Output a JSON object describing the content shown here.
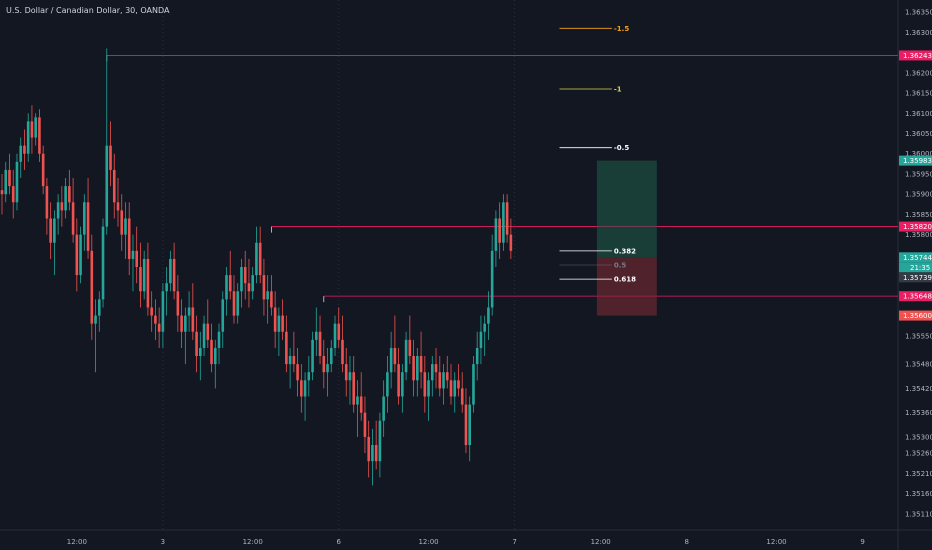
{
  "symbol_title": "U.S. Dollar / Canadian Dollar, 30, OANDA",
  "colors": {
    "bg": "#131722",
    "up": "#26a69a",
    "down": "#ef5350",
    "grid": "#1e222d",
    "text": "#b2b5be",
    "hline": "#e91e63",
    "profit": "#0f3d34",
    "loss": "#4a1f25"
  },
  "chart_data": {
    "type": "candlestick",
    "instrument": "U.S. Dollar / Canadian Dollar",
    "interval": "30",
    "source": "OANDA",
    "ylim": [
      1.3507,
      1.3638
    ],
    "price_ticks": [
      1.3635,
      1.363,
      1.362,
      1.3615,
      1.361,
      1.3605,
      1.36,
      1.3595,
      1.359,
      1.3585,
      1.358,
      1.3575,
      1.357,
      1.3565,
      1.356,
      1.3555,
      1.3548,
      1.3542,
      1.3536,
      1.353,
      1.3526,
      1.3521,
      1.3516,
      1.3511
    ],
    "price_tick_labels": [
      "1.36350",
      "1.36300",
      "1.36200",
      "1.36150",
      "1.36100",
      "1.36050",
      "1.36000",
      "1.35950",
      "1.35900",
      "1.35850",
      "1.35800",
      "1.35750",
      "1.35700",
      "1.35650",
      "1.35600",
      "1.35550",
      "1.35480",
      "1.35420",
      "1.35360",
      "1.35300",
      "1.35260",
      "1.35210",
      "1.35160",
      "1.35110"
    ],
    "time_ticks": [
      {
        "label": "12:00",
        "bar": 20
      },
      {
        "label": "3",
        "bar": 43
      },
      {
        "label": "12:00",
        "bar": 67
      },
      {
        "label": "6",
        "bar": 90
      },
      {
        "label": "12:00",
        "bar": 114
      },
      {
        "label": "7",
        "bar": 137
      },
      {
        "label": "12:00",
        "bar": 160
      },
      {
        "label": "8",
        "bar": 183
      },
      {
        "label": "12:00",
        "bar": 207
      },
      {
        "label": "9",
        "bar": 230
      }
    ],
    "session_separators": [
      43,
      90,
      137
    ],
    "bar_count_span": 240,
    "candles": [
      [
        1.3591,
        1.3595,
        1.3585,
        1.359
      ],
      [
        1.359,
        1.3598,
        1.3588,
        1.3596
      ],
      [
        1.3596,
        1.36,
        1.359,
        1.3592
      ],
      [
        1.3592,
        1.3596,
        1.3584,
        1.3588
      ],
      [
        1.3588,
        1.36,
        1.3586,
        1.3598
      ],
      [
        1.3598,
        1.3604,
        1.3594,
        1.3602
      ],
      [
        1.3602,
        1.3606,
        1.3596,
        1.36
      ],
      [
        1.36,
        1.361,
        1.3598,
        1.3608
      ],
      [
        1.3608,
        1.3612,
        1.36,
        1.3604
      ],
      [
        1.3604,
        1.361,
        1.3602,
        1.3609
      ],
      [
        1.3609,
        1.3611,
        1.3598,
        1.36
      ],
      [
        1.36,
        1.3602,
        1.359,
        1.3592
      ],
      [
        1.3592,
        1.3594,
        1.358,
        1.3584
      ],
      [
        1.3584,
        1.3588,
        1.3574,
        1.3578
      ],
      [
        1.3578,
        1.3586,
        1.357,
        1.3584
      ],
      [
        1.3584,
        1.359,
        1.358,
        1.3588
      ],
      [
        1.3588,
        1.3592,
        1.3582,
        1.3586
      ],
      [
        1.3586,
        1.3594,
        1.3584,
        1.3592
      ],
      [
        1.3592,
        1.3596,
        1.3586,
        1.3588
      ],
      [
        1.3588,
        1.3594,
        1.3578,
        1.358
      ],
      [
        1.358,
        1.3584,
        1.3566,
        1.357
      ],
      [
        1.357,
        1.3582,
        1.3568,
        1.358
      ],
      [
        1.358,
        1.359,
        1.3576,
        1.3588
      ],
      [
        1.3588,
        1.3594,
        1.3574,
        1.3576
      ],
      [
        1.3576,
        1.358,
        1.3554,
        1.3558
      ],
      [
        1.3558,
        1.3564,
        1.3546,
        1.356
      ],
      [
        1.356,
        1.3566,
        1.3556,
        1.3564
      ],
      [
        1.3564,
        1.3584,
        1.3562,
        1.3582
      ],
      [
        1.3582,
        1.3626,
        1.358,
        1.3602
      ],
      [
        1.3602,
        1.3608,
        1.3592,
        1.3596
      ],
      [
        1.3596,
        1.36,
        1.3584,
        1.3588
      ],
      [
        1.3588,
        1.3594,
        1.3582,
        1.3586
      ],
      [
        1.3586,
        1.359,
        1.3576,
        1.358
      ],
      [
        1.358,
        1.3588,
        1.3574,
        1.3584
      ],
      [
        1.3584,
        1.3588,
        1.357,
        1.3574
      ],
      [
        1.3574,
        1.358,
        1.3566,
        1.3576
      ],
      [
        1.3576,
        1.3582,
        1.3568,
        1.3572
      ],
      [
        1.3572,
        1.3578,
        1.3562,
        1.3566
      ],
      [
        1.3566,
        1.3576,
        1.3564,
        1.3574
      ],
      [
        1.3574,
        1.3578,
        1.356,
        1.3562
      ],
      [
        1.3562,
        1.3566,
        1.3556,
        1.356
      ],
      [
        1.356,
        1.3564,
        1.3554,
        1.3558
      ],
      [
        1.3558,
        1.3562,
        1.3552,
        1.3556
      ],
      [
        1.3556,
        1.3568,
        1.3552,
        1.3566
      ],
      [
        1.3566,
        1.3572,
        1.356,
        1.3568
      ],
      [
        1.3568,
        1.3576,
        1.3566,
        1.3574
      ],
      [
        1.3574,
        1.3578,
        1.3564,
        1.3566
      ],
      [
        1.3566,
        1.357,
        1.3556,
        1.356
      ],
      [
        1.356,
        1.3564,
        1.3552,
        1.3556
      ],
      [
        1.3556,
        1.3562,
        1.3548,
        1.356
      ],
      [
        1.356,
        1.3566,
        1.3556,
        1.3562
      ],
      [
        1.3562,
        1.3568,
        1.3554,
        1.3556
      ],
      [
        1.3556,
        1.356,
        1.3546,
        1.355
      ],
      [
        1.355,
        1.3556,
        1.3544,
        1.3552
      ],
      [
        1.3552,
        1.356,
        1.355,
        1.3558
      ],
      [
        1.3558,
        1.3564,
        1.3552,
        1.3554
      ],
      [
        1.3554,
        1.3558,
        1.3546,
        1.3548
      ],
      [
        1.3548,
        1.3554,
        1.3542,
        1.3552
      ],
      [
        1.3552,
        1.3558,
        1.3548,
        1.3556
      ],
      [
        1.3556,
        1.3566,
        1.3552,
        1.3564
      ],
      [
        1.3564,
        1.3572,
        1.356,
        1.357
      ],
      [
        1.357,
        1.3576,
        1.3564,
        1.3566
      ],
      [
        1.3566,
        1.357,
        1.3558,
        1.356
      ],
      [
        1.356,
        1.3568,
        1.3558,
        1.3566
      ],
      [
        1.3566,
        1.3574,
        1.3562,
        1.3572
      ],
      [
        1.3572,
        1.3576,
        1.3564,
        1.3568
      ],
      [
        1.3568,
        1.3574,
        1.3562,
        1.3566
      ],
      [
        1.3566,
        1.3572,
        1.3564,
        1.357
      ],
      [
        1.357,
        1.3582,
        1.3568,
        1.3578
      ],
      [
        1.3578,
        1.3582,
        1.3568,
        1.357
      ],
      [
        1.357,
        1.3574,
        1.356,
        1.3564
      ],
      [
        1.3564,
        1.357,
        1.3558,
        1.3566
      ],
      [
        1.3566,
        1.357,
        1.356,
        1.3562
      ],
      [
        1.3562,
        1.3566,
        1.3552,
        1.3556
      ],
      [
        1.3556,
        1.3562,
        1.355,
        1.356
      ],
      [
        1.356,
        1.3564,
        1.3554,
        1.3556
      ],
      [
        1.3556,
        1.356,
        1.3546,
        1.3548
      ],
      [
        1.3548,
        1.3552,
        1.3542,
        1.355
      ],
      [
        1.355,
        1.3556,
        1.3546,
        1.3548
      ],
      [
        1.3548,
        1.3552,
        1.354,
        1.3544
      ],
      [
        1.3544,
        1.3548,
        1.3536,
        1.354
      ],
      [
        1.354,
        1.3546,
        1.3534,
        1.3544
      ],
      [
        1.3544,
        1.355,
        1.354,
        1.3546
      ],
      [
        1.3546,
        1.3556,
        1.3544,
        1.3554
      ],
      [
        1.3554,
        1.3562,
        1.355,
        1.3556
      ],
      [
        1.3556,
        1.356,
        1.3548,
        1.355
      ],
      [
        1.355,
        1.3554,
        1.3542,
        1.3546
      ],
      [
        1.3546,
        1.3552,
        1.354,
        1.3548
      ],
      [
        1.3548,
        1.3554,
        1.3546,
        1.3552
      ],
      [
        1.3552,
        1.356,
        1.355,
        1.3558
      ],
      [
        1.3558,
        1.3562,
        1.3552,
        1.3554
      ],
      [
        1.3554,
        1.356,
        1.3546,
        1.3548
      ],
      [
        1.3548,
        1.3552,
        1.354,
        1.3544
      ],
      [
        1.3544,
        1.355,
        1.3538,
        1.3546
      ],
      [
        1.3546,
        1.355,
        1.3536,
        1.3538
      ],
      [
        1.3538,
        1.3544,
        1.353,
        1.354
      ],
      [
        1.354,
        1.3546,
        1.3534,
        1.3536
      ],
      [
        1.3536,
        1.354,
        1.3526,
        1.353
      ],
      [
        1.353,
        1.3534,
        1.352,
        1.3524
      ],
      [
        1.3524,
        1.3532,
        1.3518,
        1.3528
      ],
      [
        1.3528,
        1.3534,
        1.3522,
        1.3524
      ],
      [
        1.3524,
        1.3536,
        1.352,
        1.3534
      ],
      [
        1.3534,
        1.3544,
        1.353,
        1.354
      ],
      [
        1.354,
        1.355,
        1.3536,
        1.3546
      ],
      [
        1.3546,
        1.3556,
        1.3542,
        1.3552
      ],
      [
        1.3552,
        1.356,
        1.3546,
        1.3548
      ],
      [
        1.3548,
        1.3552,
        1.3538,
        1.354
      ],
      [
        1.354,
        1.3548,
        1.3536,
        1.3546
      ],
      [
        1.3546,
        1.3556,
        1.3544,
        1.3554
      ],
      [
        1.3554,
        1.356,
        1.3548,
        1.355
      ],
      [
        1.355,
        1.3554,
        1.354,
        1.3544
      ],
      [
        1.3544,
        1.3552,
        1.354,
        1.355
      ],
      [
        1.355,
        1.3556,
        1.3542,
        1.3546
      ],
      [
        1.3546,
        1.355,
        1.3536,
        1.354
      ],
      [
        1.354,
        1.3546,
        1.3534,
        1.3544
      ],
      [
        1.3544,
        1.355,
        1.354,
        1.3548
      ],
      [
        1.3548,
        1.3552,
        1.3542,
        1.3546
      ],
      [
        1.3546,
        1.355,
        1.354,
        1.3542
      ],
      [
        1.3542,
        1.3548,
        1.3538,
        1.3546
      ],
      [
        1.3546,
        1.355,
        1.3542,
        1.3544
      ],
      [
        1.3544,
        1.3548,
        1.3538,
        1.354
      ],
      [
        1.354,
        1.3546,
        1.3536,
        1.3544
      ],
      [
        1.3544,
        1.3548,
        1.354,
        1.3542
      ],
      [
        1.3542,
        1.3546,
        1.3536,
        1.3538
      ],
      [
        1.3538,
        1.3542,
        1.3526,
        1.3528
      ],
      [
        1.3528,
        1.354,
        1.3524,
        1.3538
      ],
      [
        1.3538,
        1.355,
        1.3536,
        1.3548
      ],
      [
        1.3548,
        1.3556,
        1.3544,
        1.3552
      ],
      [
        1.3552,
        1.356,
        1.3548,
        1.3556
      ],
      [
        1.3556,
        1.356,
        1.355,
        1.3558
      ],
      [
        1.3558,
        1.3566,
        1.3554,
        1.3562
      ],
      [
        1.3562,
        1.358,
        1.356,
        1.3576
      ],
      [
        1.3576,
        1.3586,
        1.3572,
        1.3584
      ],
      [
        1.3584,
        1.3588,
        1.3574,
        1.3578
      ],
      [
        1.3578,
        1.359,
        1.3576,
        1.3588
      ],
      [
        1.3588,
        1.359,
        1.3578,
        1.358
      ],
      [
        1.358,
        1.3584,
        1.3574,
        1.3576
      ]
    ],
    "horizontal_levels": [
      {
        "price": 1.36243,
        "label": "1.36243",
        "start_bar": 28
      },
      {
        "price": 1.3582,
        "label": "1.35820",
        "start_bar": 72
      },
      {
        "price": 1.35648,
        "label": "1.35648",
        "start_bar": 86
      }
    ],
    "position": {
      "entry": 1.35744,
      "target": 1.35983,
      "stop": 1.356,
      "start_bar": 159,
      "end_bar": 175,
      "entry_label": "1.35744",
      "target_label": "1.35983",
      "stop_label": "1.35600",
      "countdown": "21:35",
      "last_price_label": "1.35739"
    },
    "fib_levels": [
      {
        "ratio_label": "-1.5",
        "price": 1.3631,
        "color": "#f7a21b"
      },
      {
        "ratio_label": "-1",
        "price": 1.3616,
        "color": "#dfd24a"
      },
      {
        "ratio_label": "-0.5",
        "price": 1.36015,
        "color": "#ffffff"
      },
      {
        "ratio_label": "0.382",
        "price": 1.3576,
        "color": "#ffffff"
      },
      {
        "ratio_label": "0.5",
        "price": 1.35725,
        "color": "#787b86"
      },
      {
        "ratio_label": "0.618",
        "price": 1.3569,
        "color": "#ffffff"
      }
    ],
    "fib_start_bar": 149,
    "fib_end_bar": 163
  }
}
